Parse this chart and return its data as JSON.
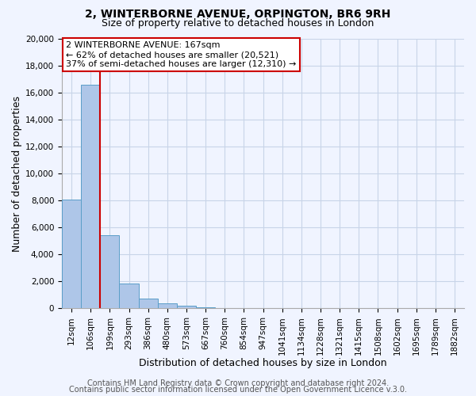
{
  "title": "2, WINTERBORNE AVENUE, ORPINGTON, BR6 9RH",
  "subtitle": "Size of property relative to detached houses in London",
  "xlabel": "Distribution of detached houses by size in London",
  "ylabel": "Number of detached properties",
  "bar_labels": [
    "12sqm",
    "106sqm",
    "199sqm",
    "293sqm",
    "386sqm",
    "480sqm",
    "573sqm",
    "667sqm",
    "760sqm",
    "854sqm",
    "947sqm",
    "1041sqm",
    "1134sqm",
    "1228sqm",
    "1321sqm",
    "1415sqm",
    "1508sqm",
    "1602sqm",
    "1695sqm",
    "1789sqm",
    "1882sqm"
  ],
  "bar_values": [
    8100,
    16600,
    5400,
    1850,
    750,
    350,
    200,
    100,
    50,
    0,
    0,
    0,
    0,
    0,
    0,
    0,
    0,
    0,
    0,
    0,
    0
  ],
  "bar_color": "#aec6e8",
  "bar_edge_color": "#5a9ec8",
  "ylim": [
    0,
    20000
  ],
  "yticks": [
    0,
    2000,
    4000,
    6000,
    8000,
    10000,
    12000,
    14000,
    16000,
    18000,
    20000
  ],
  "property_line_x": 1.5,
  "property_line_color": "#cc0000",
  "annotation_title": "2 WINTERBORNE AVENUE: 167sqm",
  "annotation_line1": "← 62% of detached houses are smaller (20,521)",
  "annotation_line2": "37% of semi-detached houses are larger (12,310) →",
  "annotation_box_color": "#ffffff",
  "annotation_box_edge": "#cc0000",
  "footer1": "Contains HM Land Registry data © Crown copyright and database right 2024.",
  "footer2": "Contains public sector information licensed under the Open Government Licence v.3.0.",
  "bg_color": "#f0f4ff",
  "grid_color": "#c8d4e8",
  "title_fontsize": 10,
  "subtitle_fontsize": 9,
  "axis_label_fontsize": 9,
  "tick_fontsize": 7.5,
  "footer_fontsize": 7,
  "annotation_fontsize": 8
}
